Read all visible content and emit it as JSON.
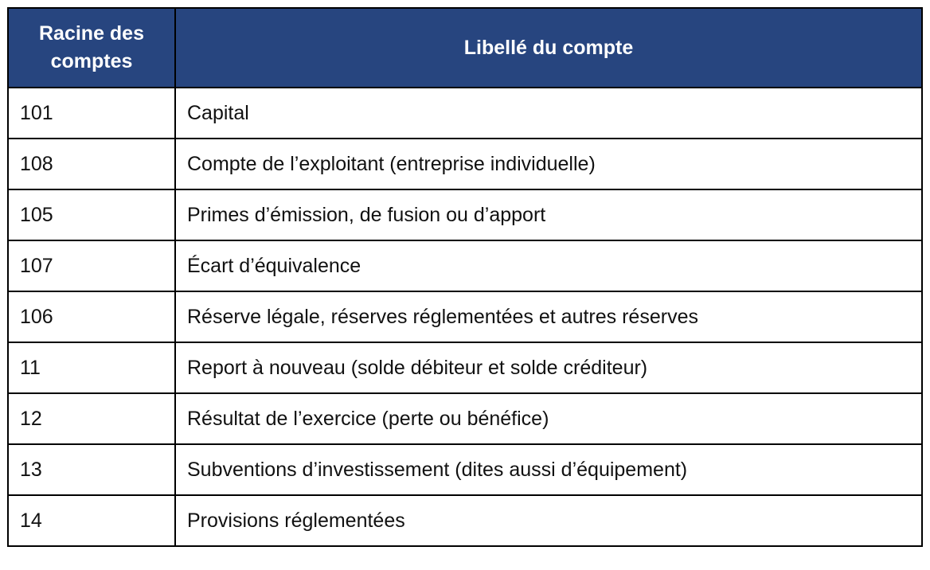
{
  "table": {
    "headers": [
      "Racine des comptes",
      "Libellé du compte"
    ],
    "header_color": "#27457f",
    "rows": [
      [
        "101",
        "Capital"
      ],
      [
        "108",
        "Compte de l’exploitant (entreprise individuelle)"
      ],
      [
        "105",
        "Primes d’émission, de fusion ou d’apport"
      ],
      [
        "107",
        "Écart d’équivalence"
      ],
      [
        "106",
        "Réserve légale, réserves réglementées et autres réserves"
      ],
      [
        "11",
        "Report à nouveau (solde débiteur et solde créditeur)"
      ],
      [
        "12",
        "Résultat de l’exercice (perte ou bénéfice)"
      ],
      [
        "13",
        "Subventions d’investissement (dites aussi d’équipement)"
      ],
      [
        "14",
        "Provisions réglementées"
      ]
    ]
  }
}
